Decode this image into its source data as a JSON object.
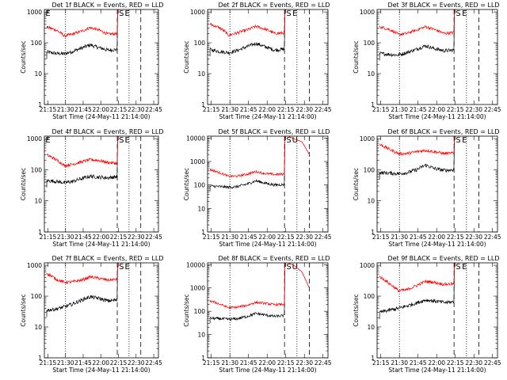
{
  "chart_data": [
    {
      "type": "line",
      "title": "Det 1f BLACK = Events, RED = LLD",
      "xlabel": "Start Time (24-May-11 21:14:00)",
      "ylabel": "Counts/sec",
      "x_ticks": [
        "21:15",
        "21:30",
        "21:45",
        "22:00",
        "22:15",
        "22:30",
        "22:45"
      ],
      "y_ticks": [
        "1",
        "10",
        "100",
        "1000"
      ],
      "ylim": [
        1,
        1200
      ],
      "yscale": "log",
      "corner_marks": [
        "E",
        "S",
        "E"
      ],
      "series": [
        {
          "name": "BLACK = Events",
          "color": "#000000",
          "x_minutes": [
            0,
            8,
            15,
            22,
            30,
            37,
            44,
            52,
            60
          ],
          "y": [
            50,
            45,
            44,
            52,
            68,
            85,
            70,
            58,
            60
          ],
          "jump_to": 1200
        },
        {
          "name": "RED = LLD",
          "color": "#ff0000",
          "x_minutes": [
            0,
            8,
            15,
            22,
            30,
            37,
            44,
            52,
            60
          ],
          "y": [
            320,
            260,
            165,
            190,
            240,
            310,
            260,
            190,
            200
          ],
          "jump_to": 1200
        }
      ],
      "vlines": {
        "dotted": [
          16,
          70
        ],
        "dashed": [
          60,
          80
        ]
      }
    },
    {
      "type": "line",
      "title": "Det 2f BLACK = Events, RED = LLD",
      "xlabel": "Start Time (24-May-11 21:14:00)",
      "ylabel": "Counts/sec",
      "x_ticks": [
        "21:15",
        "21:30",
        "21:45",
        "22:00",
        "22:15",
        "22:30",
        "22:45"
      ],
      "y_ticks": [
        "1",
        "10",
        "100",
        "1000"
      ],
      "ylim": [
        1,
        1200
      ],
      "yscale": "log",
      "corner_marks": [
        "S",
        "E"
      ],
      "series": [
        {
          "name": "BLACK = Events",
          "color": "#000000",
          "x_minutes": [
            0,
            8,
            15,
            22,
            30,
            37,
            44,
            52,
            60
          ],
          "y": [
            60,
            52,
            48,
            56,
            75,
            95,
            75,
            58,
            62
          ],
          "jump_to": 1200
        },
        {
          "name": "RED = LLD",
          "color": "#ff0000",
          "x_minutes": [
            0,
            8,
            15,
            22,
            30,
            37,
            44,
            52,
            60
          ],
          "y": [
            400,
            300,
            175,
            210,
            260,
            340,
            280,
            200,
            210
          ],
          "jump_to": 1200
        }
      ],
      "vlines": {
        "dotted": [
          16,
          70
        ],
        "dashed": [
          60,
          80
        ]
      }
    },
    {
      "type": "line",
      "title": "Det 3f BLACK = Events, RED = LLD",
      "xlabel": "Start Time (24-May-11 21:14:00)",
      "ylabel": "Counts/sec",
      "x_ticks": [
        "21:15",
        "21:30",
        "21:45",
        "22:00",
        "22:15",
        "22:30",
        "22:45"
      ],
      "y_ticks": [
        "1",
        "10",
        "100",
        "1000"
      ],
      "ylim": [
        1,
        1200
      ],
      "yscale": "log",
      "corner_marks": [
        "S",
        "E"
      ],
      "series": [
        {
          "name": "BLACK = Events",
          "color": "#000000",
          "x_minutes": [
            0,
            8,
            15,
            22,
            30,
            37,
            44,
            52,
            60
          ],
          "y": [
            45,
            42,
            40,
            48,
            62,
            80,
            65,
            55,
            58
          ],
          "jump_to": 1200
        },
        {
          "name": "RED = LLD",
          "color": "#ff0000",
          "x_minutes": [
            0,
            8,
            15,
            22,
            30,
            37,
            44,
            52,
            60
          ],
          "y": [
            330,
            270,
            185,
            200,
            260,
            330,
            270,
            200,
            215
          ],
          "jump_to": 1200
        }
      ],
      "vlines": {
        "dotted": [
          16,
          70
        ],
        "dashed": [
          60,
          80
        ]
      }
    },
    {
      "type": "line",
      "title": "Det 4f BLACK = Events, RED = LLD",
      "xlabel": "Start Time (24-May-11 21:14:00)",
      "ylabel": "Counts/sec",
      "x_ticks": [
        "21:15",
        "21:30",
        "21:45",
        "22:00",
        "22:15",
        "22:30",
        "22:45"
      ],
      "y_ticks": [
        "1",
        "10",
        "100",
        "1000"
      ],
      "ylim": [
        1,
        1200
      ],
      "yscale": "log",
      "corner_marks": [
        "E",
        "S",
        "E"
      ],
      "series": [
        {
          "name": "BLACK = Events",
          "color": "#000000",
          "x_minutes": [
            0,
            8,
            15,
            22,
            30,
            37,
            44,
            52,
            60
          ],
          "y": [
            45,
            42,
            38,
            42,
            52,
            62,
            58,
            55,
            60
          ],
          "jump_to": 1200
        },
        {
          "name": "RED = LLD",
          "color": "#ff0000",
          "x_minutes": [
            0,
            8,
            15,
            22,
            30,
            37,
            44,
            52,
            60
          ],
          "y": [
            300,
            210,
            135,
            150,
            180,
            210,
            200,
            170,
            160
          ],
          "jump_to": 1200
        }
      ],
      "vlines": {
        "dotted": [
          16,
          70
        ],
        "dashed": [
          60,
          80
        ]
      }
    },
    {
      "type": "line",
      "title": "Det 5f BLACK = Events, RED = LLD",
      "xlabel": "Start Time (24-May-11 21:14:00)",
      "ylabel": "Counts/sec",
      "x_ticks": [
        "21:15",
        "21:30",
        "21:45",
        "22:00",
        "22:15",
        "22:30",
        "22:45"
      ],
      "y_ticks": [
        "1",
        "10",
        "100",
        "1000",
        "10000"
      ],
      "ylim": [
        1,
        12000
      ],
      "yscale": "log",
      "corner_marks": [
        "S",
        "U"
      ],
      "series": [
        {
          "name": "BLACK = Events",
          "color": "#000000",
          "x_minutes": [
            0,
            8,
            15,
            22,
            30,
            37,
            44,
            52,
            60
          ],
          "y": [
            90,
            85,
            80,
            85,
            110,
            150,
            120,
            100,
            105
          ],
          "jump_to": 12000
        },
        {
          "name": "RED = LLD",
          "color": "#ff0000",
          "x_minutes": [
            0,
            8,
            15,
            22,
            30,
            37,
            44,
            52,
            60
          ],
          "y": [
            450,
            330,
            230,
            240,
            290,
            370,
            310,
            280,
            290
          ],
          "jump_to": 12000
        }
      ],
      "tail": {
        "red": [
          [
            63,
            12000
          ],
          [
            68,
            9000
          ],
          [
            74,
            7000
          ],
          [
            80,
            2000
          ]
        ]
      },
      "vlines": {
        "dotted": [
          16,
          70
        ],
        "dashed": [
          60,
          80
        ]
      }
    },
    {
      "type": "line",
      "title": "Det 6f BLACK = Events, RED = LLD",
      "xlabel": "Start Time (24-May-11 21:14:00)",
      "ylabel": "Counts/sec",
      "x_ticks": [
        "21:15",
        "21:30",
        "21:45",
        "22:00",
        "22:15",
        "22:30",
        "22:45"
      ],
      "y_ticks": [
        "1",
        "10",
        "100",
        "1000"
      ],
      "ylim": [
        1,
        1200
      ],
      "yscale": "log",
      "corner_marks": [
        "S",
        "E"
      ],
      "series": [
        {
          "name": "BLACK = Events",
          "color": "#000000",
          "x_minutes": [
            0,
            8,
            15,
            22,
            30,
            37,
            44,
            52,
            60
          ],
          "y": [
            80,
            78,
            75,
            80,
            100,
            140,
            110,
            95,
            100
          ],
          "jump_to": 1200
        },
        {
          "name": "RED = LLD",
          "color": "#ff0000",
          "x_minutes": [
            0,
            8,
            15,
            22,
            30,
            37,
            44,
            52,
            60
          ],
          "y": [
            650,
            450,
            330,
            330,
            380,
            420,
            380,
            330,
            340
          ],
          "jump_to": 1200
        }
      ],
      "vlines": {
        "dotted": [
          16,
          70
        ],
        "dashed": [
          60,
          80
        ]
      }
    },
    {
      "type": "line",
      "title": "Det 7f BLACK = Events, RED = LLD",
      "xlabel": "Start Time (24-May-11 21:14:00)",
      "ylabel": "Counts/sec",
      "x_ticks": [
        "21:15",
        "21:30",
        "21:45",
        "22:00",
        "22:15",
        "22:30",
        "22:45"
      ],
      "y_ticks": [
        "1",
        "10",
        "100",
        "1000"
      ],
      "ylim": [
        1,
        1200
      ],
      "yscale": "log",
      "corner_marks": [
        "S",
        "E"
      ],
      "series": [
        {
          "name": "BLACK = Events",
          "color": "#000000",
          "x_minutes": [
            0,
            8,
            15,
            22,
            30,
            37,
            44,
            52,
            60
          ],
          "y": [
            35,
            38,
            45,
            55,
            75,
            95,
            85,
            70,
            75
          ],
          "jump_to": 1200
        },
        {
          "name": "RED = LLD",
          "color": "#ff0000",
          "x_minutes": [
            0,
            8,
            15,
            22,
            30,
            37,
            44,
            52,
            60
          ],
          "y": [
            550,
            350,
            280,
            290,
            330,
            420,
            380,
            330,
            350
          ],
          "jump_to": 1200
        }
      ],
      "vlines": {
        "dotted": [
          16,
          70
        ],
        "dashed": [
          60,
          80
        ]
      }
    },
    {
      "type": "line",
      "title": "Det 8f BLACK = Events, RED = LLD",
      "xlabel": "Start Time (24-May-11 21:14:00)",
      "ylabel": "Counts/sec",
      "x_ticks": [
        "21:15",
        "21:30",
        "21:45",
        "22:00",
        "22:15",
        "22:30",
        "22:45"
      ],
      "y_ticks": [
        "1",
        "10",
        "100",
        "1000",
        "10000"
      ],
      "ylim": [
        1,
        12000
      ],
      "yscale": "log",
      "corner_marks": [
        "S",
        "U"
      ],
      "series": [
        {
          "name": "BLACK = Events",
          "color": "#000000",
          "x_minutes": [
            0,
            8,
            15,
            22,
            30,
            37,
            44,
            52,
            60
          ],
          "y": [
            50,
            48,
            45,
            48,
            60,
            80,
            70,
            60,
            65
          ],
          "jump_to": 12000
        },
        {
          "name": "RED = LLD",
          "color": "#ff0000",
          "x_minutes": [
            0,
            8,
            15,
            22,
            30,
            37,
            44,
            52,
            60
          ],
          "y": [
            280,
            200,
            140,
            150,
            180,
            240,
            220,
            190,
            200
          ],
          "jump_to": 12000
        }
      ],
      "tail": {
        "red": [
          [
            63,
            12000
          ],
          [
            68,
            9000
          ],
          [
            74,
            5000
          ],
          [
            80,
            1000
          ]
        ]
      },
      "vlines": {
        "dotted": [
          16,
          70
        ],
        "dashed": [
          60,
          80
        ]
      }
    },
    {
      "type": "line",
      "title": "Det 9f BLACK = Events, RED = LLD",
      "xlabel": "Start Time (24-May-11 21:14:00)",
      "ylabel": "Counts/sec",
      "x_ticks": [
        "21:15",
        "21:30",
        "21:45",
        "22:00",
        "22:15",
        "22:30",
        "22:45"
      ],
      "y_ticks": [
        "1",
        "10",
        "100",
        "1000"
      ],
      "ylim": [
        1,
        1200
      ],
      "yscale": "log",
      "corner_marks": [
        "S",
        "E"
      ],
      "series": [
        {
          "name": "BLACK = Events",
          "color": "#000000",
          "x_minutes": [
            0,
            8,
            15,
            22,
            30,
            37,
            44,
            52,
            60
          ],
          "y": [
            30,
            35,
            40,
            48,
            60,
            75,
            70,
            62,
            65
          ],
          "jump_to": 1200
        },
        {
          "name": "RED = LLD",
          "color": "#ff0000",
          "x_minutes": [
            0,
            8,
            15,
            22,
            30,
            37,
            44,
            52,
            60
          ],
          "y": [
            420,
            250,
            150,
            160,
            220,
            300,
            280,
            240,
            250
          ],
          "jump_to": 1200
        }
      ],
      "vlines": {
        "dotted": [
          16,
          70
        ],
        "dashed": [
          60,
          80
        ]
      }
    }
  ]
}
